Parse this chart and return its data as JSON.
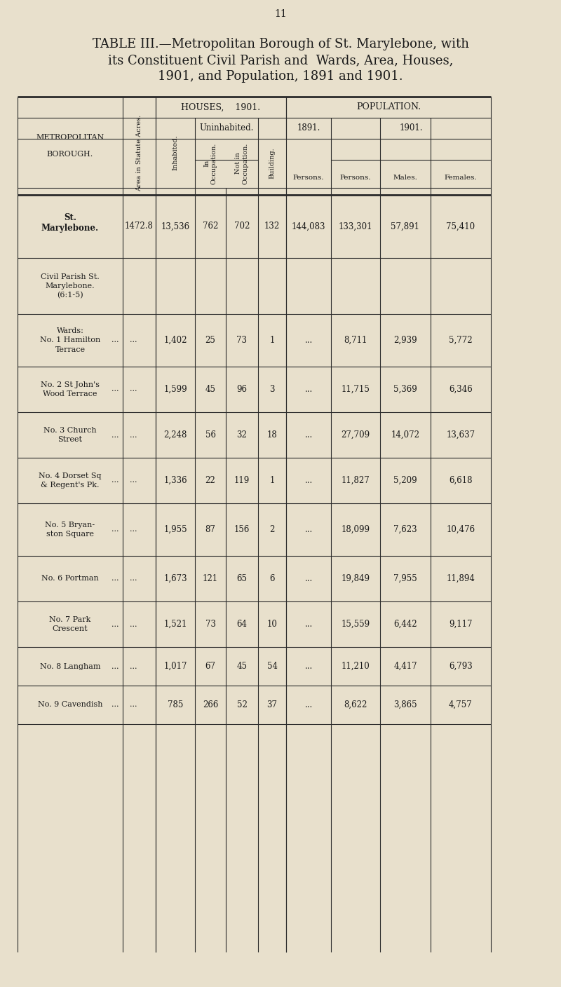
{
  "page_number": "11",
  "title_line1": "TABLE III.—Metropolitan Borough of St. Marylebone, with",
  "title_line2": "its Constituent Civil Parish and  Wards, Area, Houses,",
  "title_line3": "1901, and Population, 1891 and 1901.",
  "bg_color": "#e8e0cc",
  "col_header_row1_left": "METROPOLITAN\nBOROUGH.",
  "col_header_area": "Area in Statute Acres.",
  "col_header_houses": "HOUSES,    1901.",
  "col_header_pop": "POPULATION.",
  "col_header_inhabited": "Inhabited.",
  "col_header_uninhabited": "Uninhabited.",
  "col_header_in_occ": "In\nOccupation.",
  "col_header_not_in_occ": "Not in\nOccupation.",
  "col_header_building": "Building.",
  "col_header_1891": "1891.",
  "col_header_1901": "1901.",
  "col_header_persons_1891": "Persons.",
  "col_header_persons_1901": "Persons.",
  "col_header_males": "Males.",
  "col_header_females": "Females.",
  "rows": [
    {
      "name": "St.\nMarylebone.",
      "name_style": "bold",
      "area": "1472.8",
      "inhabited": "13,536",
      "in_occ": "762",
      "not_in_occ": "702",
      "building": "132",
      "persons_1891": "144,083",
      "persons_1901": "133,301",
      "males": "57,891",
      "females": "75,410",
      "is_total": true
    },
    {
      "name": "Civil Parish St.\nMarylebone.\n(6:1-5)",
      "name_style": "normal",
      "area": "",
      "inhabited": "",
      "in_occ": "",
      "not_in_occ": "",
      "building": "",
      "persons_1891": "",
      "persons_1901": "",
      "males": "",
      "females": "",
      "is_total": false
    },
    {
      "name": "Wards:\nNo. 1 Hamilton\nTerrace",
      "name_style": "normal",
      "area": "",
      "inhabited": "1,402",
      "in_occ": "25",
      "not_in_occ": "73",
      "building": "1",
      "persons_1891": "...",
      "persons_1901": "8,711",
      "males": "2,939",
      "females": "5,772",
      "is_total": false
    },
    {
      "name": "No. 2 St John's\nWood Terrace",
      "name_style": "normal",
      "area": "",
      "inhabited": "1,599",
      "in_occ": "45",
      "not_in_occ": "96",
      "building": "3",
      "persons_1891": "...",
      "persons_1901": "11,715",
      "males": "5,369",
      "females": "6,346",
      "is_total": false
    },
    {
      "name": "No. 3 Church\nStreet",
      "name_style": "normal",
      "area": "",
      "inhabited": "2,248",
      "in_occ": "56",
      "not_in_occ": "32",
      "building": "18",
      "persons_1891": "...",
      "persons_1901": "27,709",
      "males": "14,072",
      "females": "13,637",
      "is_total": false
    },
    {
      "name": "No. 4 Dorset Sq\n& Regent's Pk.",
      "name_style": "normal",
      "area": "",
      "inhabited": "1,336",
      "in_occ": "22",
      "not_in_occ": "119",
      "building": "1",
      "persons_1891": "...",
      "persons_1901": "11,827",
      "males": "5,209",
      "females": "6,618",
      "is_total": false
    },
    {
      "name": "No. 5 Bryan-\nston Square",
      "name_style": "normal",
      "area": "",
      "inhabited": "1,955",
      "in_occ": "87",
      "not_in_occ": "156",
      "building": "2",
      "persons_1891": "...",
      "persons_1901": "18,099",
      "males": "7,623",
      "females": "10,476",
      "is_total": false
    },
    {
      "name": "No. 6 Portman",
      "name_style": "normal",
      "area": "",
      "inhabited": "1,673",
      "in_occ": "121",
      "not_in_occ": "65",
      "building": "6",
      "persons_1891": "...",
      "persons_1901": "19,849",
      "males": "7,955",
      "females": "11,894",
      "is_total": false
    },
    {
      "name": "No. 7 Park\nCrescent",
      "name_style": "normal",
      "area": "",
      "inhabited": "1,521",
      "in_occ": "73",
      "not_in_occ": "64",
      "building": "10",
      "persons_1891": "...",
      "persons_1901": "15,559",
      "males": "6,442",
      "females": "9,117",
      "is_total": false
    },
    {
      "name": "No. 8 Langham",
      "name_style": "normal",
      "area": "",
      "inhabited": "1,017",
      "in_occ": "67",
      "not_in_occ": "45",
      "building": "54",
      "persons_1891": "...",
      "persons_1901": "11,210",
      "males": "4,417",
      "females": "6,793",
      "is_total": false
    },
    {
      "name": "No. 9 Cavendish",
      "name_style": "normal",
      "area": "",
      "inhabited": "785",
      "in_occ": "266",
      "not_in_occ": "52",
      "building": "37",
      "persons_1891": "...",
      "persons_1901": "8,622",
      "males": "3,865",
      "females": "4,757",
      "is_total": false
    }
  ]
}
